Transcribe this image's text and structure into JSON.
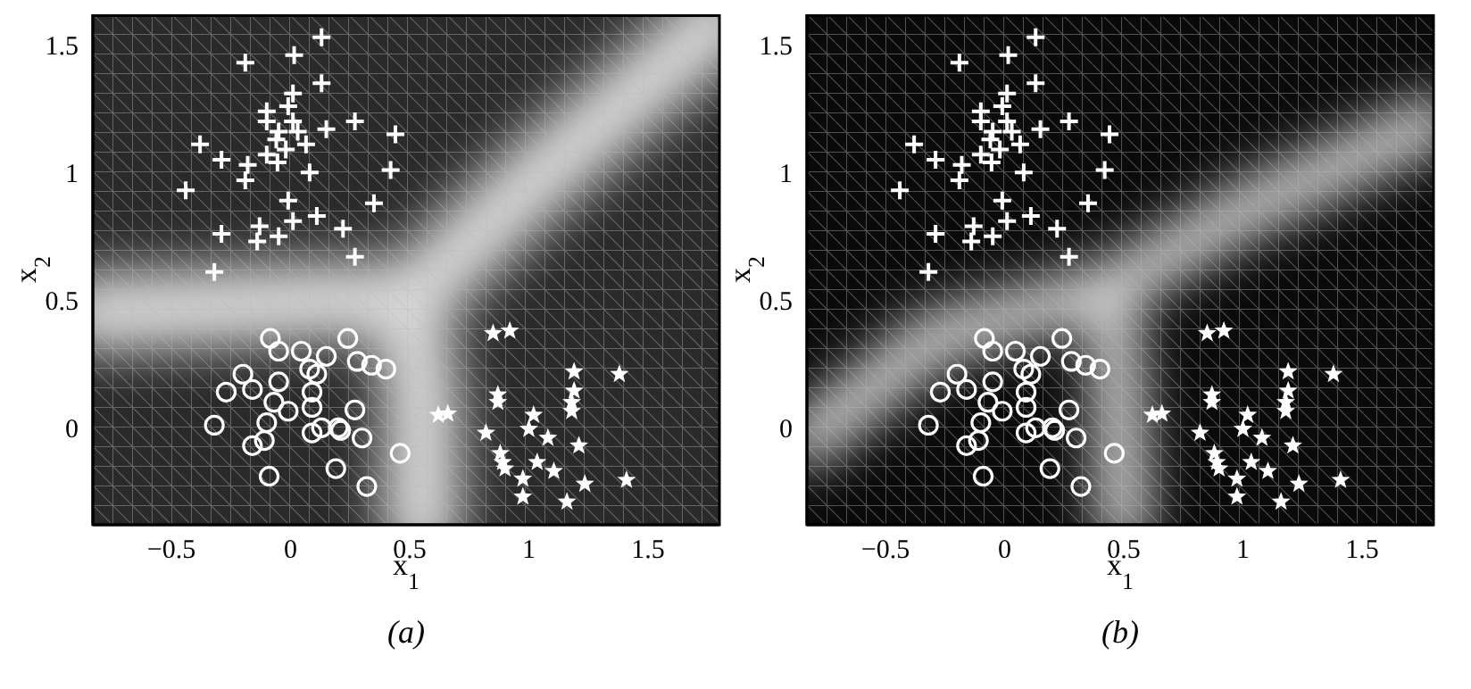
{
  "chart_data": [
    {
      "type": "scatter",
      "xlabel": "x$_{1}$",
      "ylabel": "x$_{2}$",
      "annotations": [
        "(a)"
      ],
      "xlim": [
        -0.83,
        1.8
      ],
      "ylim": [
        -0.38,
        1.62
      ],
      "xticks": [
        {
          "value": -0.5,
          "label": "−0.5"
        },
        0,
        0.5,
        1,
        1.5
      ],
      "yticks": [
        0,
        0.5,
        1,
        1.5
      ],
      "grid": false,
      "series": [
        {
          "marker": "cross",
          "color": "#ffffff",
          "x": [
            -0.19,
            0.015,
            0.13,
            0.13,
            0.01,
            -0.01,
            -0.1,
            -0.1,
            0.01,
            -0.05,
            0.03,
            0.15,
            0.27,
            0.44,
            -0.06,
            0.065,
            -0.02,
            -0.38,
            -0.29,
            -0.1,
            -0.055,
            -0.18,
            0.08,
            0.42,
            -0.19,
            -0.44,
            -0.01,
            0.35,
            0.11,
            0.01,
            -0.13,
            0.22,
            -0.29,
            -0.05,
            -0.14,
            0.27,
            -0.32
          ],
          "values": [
            1.43,
            1.46,
            1.53,
            1.35,
            1.31,
            1.26,
            1.24,
            1.2,
            1.2,
            1.16,
            1.16,
            1.17,
            1.2,
            1.15,
            1.13,
            1.11,
            1.09,
            1.11,
            1.05,
            1.07,
            1.04,
            1.03,
            1.0,
            1.01,
            0.97,
            0.93,
            0.89,
            0.88,
            0.83,
            0.81,
            0.79,
            0.78,
            0.76,
            0.75,
            0.73,
            0.67,
            0.61
          ]
        },
        {
          "marker": "circle",
          "color": "#ffffff",
          "x": [
            -0.085,
            -0.05,
            0.045,
            0.15,
            0.24,
            0.28,
            0.34,
            0.4,
            0.08,
            0.11,
            -0.2,
            -0.05,
            -0.27,
            -0.16,
            0.09,
            -0.07,
            0.09,
            -0.01,
            0.27,
            -0.32,
            -0.1,
            0.13,
            0.2,
            0.21,
            0.09,
            0.3,
            -0.11,
            -0.16,
            0.46,
            0.19,
            -0.09,
            0.32
          ],
          "values": [
            0.35,
            0.3,
            0.3,
            0.28,
            0.35,
            0.26,
            0.245,
            0.23,
            0.23,
            0.21,
            0.21,
            0.18,
            0.14,
            0.15,
            0.14,
            0.1,
            0.08,
            0.065,
            0.07,
            0.01,
            0.02,
            0.0,
            0.0,
            -0.01,
            -0.02,
            -0.04,
            -0.05,
            -0.07,
            -0.1,
            -0.16,
            -0.19,
            -0.23
          ]
        },
        {
          "marker": "star",
          "color": "#ffffff",
          "x": [
            0.85,
            0.92,
            0.62,
            0.66,
            1.19,
            1.38,
            1.19,
            0.87,
            0.87,
            1.18,
            1.18,
            1.02,
            1.0,
            0.82,
            1.08,
            1.21,
            0.88,
            0.89,
            0.9,
            1.035,
            1.105,
            0.975,
            1.41,
            1.235,
            0.975,
            1.16
          ],
          "values": [
            0.37,
            0.38,
            0.05,
            0.055,
            0.22,
            0.21,
            0.145,
            0.13,
            0.1,
            0.1,
            0.065,
            0.05,
            -0.005,
            -0.02,
            -0.04,
            -0.07,
            -0.1,
            -0.135,
            -0.16,
            -0.135,
            -0.17,
            -0.2,
            -0.205,
            -0.22,
            -0.27,
            -0.29
          ]
        }
      ]
    },
    {
      "type": "scatter",
      "xlabel": "x$_{1}$",
      "ylabel": "x$_{2}$",
      "annotations": [
        "(b)"
      ],
      "xlim": [
        -0.83,
        1.8
      ],
      "ylim": [
        -0.38,
        1.62
      ],
      "xticks": [
        {
          "value": -0.5,
          "label": "−0.5"
        },
        0,
        0.5,
        1,
        1.5
      ],
      "yticks": [
        0,
        0.5,
        1,
        1.5
      ],
      "grid": false,
      "series": [
        {
          "marker": "cross",
          "color": "#ffffff",
          "x": [
            -0.19,
            0.015,
            0.13,
            0.13,
            0.01,
            -0.01,
            -0.1,
            -0.1,
            0.01,
            -0.05,
            0.03,
            0.15,
            0.27,
            0.44,
            -0.06,
            0.065,
            -0.02,
            -0.38,
            -0.29,
            -0.1,
            -0.055,
            -0.18,
            0.08,
            0.42,
            -0.19,
            -0.44,
            -0.01,
            0.35,
            0.11,
            0.01,
            -0.13,
            0.22,
            -0.29,
            -0.05,
            -0.14,
            0.27,
            -0.32
          ],
          "values": [
            1.43,
            1.46,
            1.53,
            1.35,
            1.31,
            1.26,
            1.24,
            1.2,
            1.2,
            1.16,
            1.16,
            1.17,
            1.2,
            1.15,
            1.13,
            1.11,
            1.09,
            1.11,
            1.05,
            1.07,
            1.04,
            1.03,
            1.0,
            1.01,
            0.97,
            0.93,
            0.89,
            0.88,
            0.83,
            0.81,
            0.79,
            0.78,
            0.76,
            0.75,
            0.73,
            0.67,
            0.61
          ]
        },
        {
          "marker": "circle",
          "color": "#ffffff",
          "x": [
            -0.085,
            -0.05,
            0.045,
            0.15,
            0.24,
            0.28,
            0.34,
            0.4,
            0.08,
            0.11,
            -0.2,
            -0.05,
            -0.27,
            -0.16,
            0.09,
            -0.07,
            0.09,
            -0.01,
            0.27,
            -0.32,
            -0.1,
            0.13,
            0.2,
            0.21,
            0.09,
            0.3,
            -0.11,
            -0.16,
            0.46,
            0.19,
            -0.09,
            0.32
          ],
          "values": [
            0.35,
            0.3,
            0.3,
            0.28,
            0.35,
            0.26,
            0.245,
            0.23,
            0.23,
            0.21,
            0.21,
            0.18,
            0.14,
            0.15,
            0.14,
            0.1,
            0.08,
            0.065,
            0.07,
            0.01,
            0.02,
            0.0,
            0.0,
            -0.01,
            -0.02,
            -0.04,
            -0.05,
            -0.07,
            -0.1,
            -0.16,
            -0.19,
            -0.23
          ]
        },
        {
          "marker": "star",
          "color": "#ffffff",
          "x": [
            0.85,
            0.92,
            0.62,
            0.66,
            1.19,
            1.38,
            1.19,
            0.87,
            0.87,
            1.18,
            1.18,
            1.02,
            1.0,
            0.82,
            1.08,
            1.21,
            0.88,
            0.89,
            0.9,
            1.035,
            1.105,
            0.975,
            1.41,
            1.235,
            0.975,
            1.16
          ],
          "values": [
            0.37,
            0.38,
            0.05,
            0.055,
            0.22,
            0.21,
            0.145,
            0.13,
            0.1,
            0.1,
            0.065,
            0.05,
            -0.005,
            -0.02,
            -0.04,
            -0.07,
            -0.1,
            -0.135,
            -0.16,
            -0.135,
            -0.17,
            -0.2,
            -0.205,
            -0.22,
            -0.27,
            -0.29
          ]
        }
      ]
    }
  ]
}
